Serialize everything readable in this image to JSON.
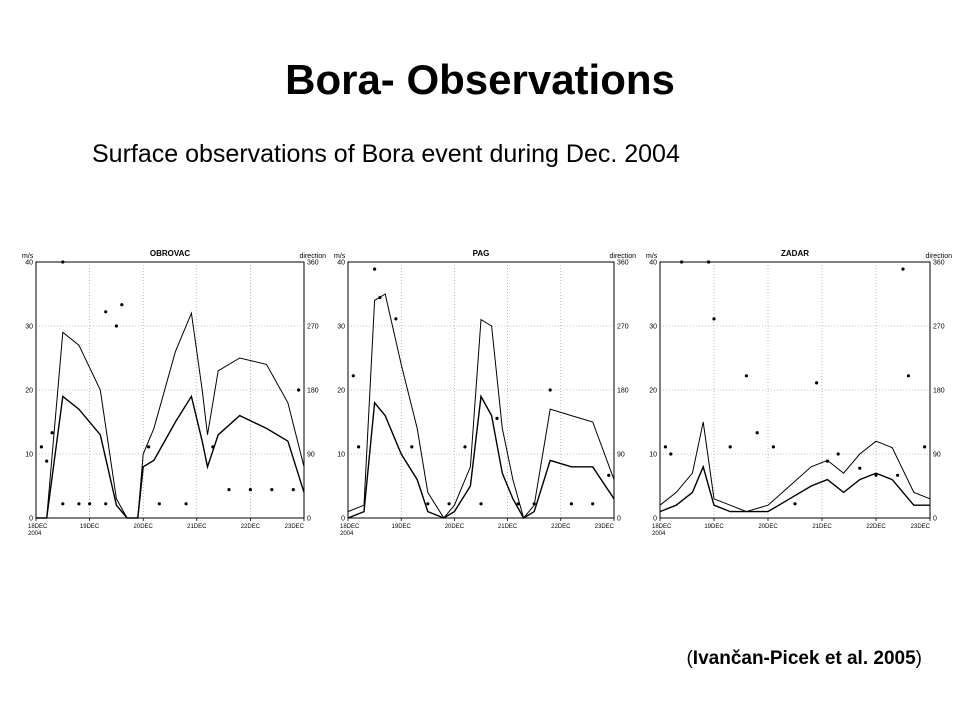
{
  "page": {
    "title": "Bora- Observations",
    "subtitle": "Surface observations of Bora event during Dec. 2004",
    "citation_open": "(",
    "citation_text": "Ivančan-Picek et al. 2005",
    "citation_close": ")"
  },
  "chart_data": [
    {
      "type": "line",
      "title": "OBROVAC",
      "ylabel_left": "m/s",
      "ylabel_right": "direction",
      "ylim": [
        0,
        40
      ],
      "ylim_right": [
        0,
        360
      ],
      "yticks_left": [
        "0",
        "10",
        "20",
        "30",
        "40"
      ],
      "yticks_right": [
        "0",
        "90",
        "180",
        "270",
        "360"
      ],
      "xlim": [
        0,
        5
      ],
      "xticks": [
        "18DEC 2004",
        "19DEC",
        "20DEC",
        "21DEC",
        "22DEC",
        "23DEC"
      ],
      "grid": true,
      "series": [
        {
          "x": [
            0,
            0.2,
            0.5,
            0.8,
            1.2,
            1.5,
            1.7,
            1.9,
            2.0,
            2.2,
            2.6,
            2.9,
            3.1,
            3.2,
            3.4,
            3.8,
            4.3,
            4.7,
            5.0
          ],
          "y": [
            0,
            0,
            29,
            27,
            20,
            3,
            0,
            0,
            10,
            14,
            26,
            32,
            20,
            13,
            23,
            25,
            24,
            18,
            8
          ]
        },
        {
          "x": [
            0,
            0.2,
            0.5,
            0.8,
            1.2,
            1.5,
            1.7,
            1.9,
            2.0,
            2.2,
            2.6,
            2.9,
            3.1,
            3.2,
            3.4,
            3.8,
            4.3,
            4.7,
            5.0
          ],
          "y": [
            0,
            0,
            19,
            17,
            13,
            2,
            0,
            0,
            8,
            9,
            15,
            19,
            12,
            8,
            13,
            16,
            14,
            12,
            4
          ]
        }
      ],
      "direction_points": [
        [
          0.1,
          100
        ],
        [
          0.2,
          80
        ],
        [
          0.3,
          120
        ],
        [
          0.5,
          20
        ],
        [
          0.8,
          20
        ],
        [
          1.0,
          20
        ],
        [
          1.3,
          20
        ],
        [
          0.5,
          360
        ],
        [
          1.3,
          290
        ],
        [
          1.5,
          270
        ],
        [
          1.6,
          300
        ],
        [
          2.1,
          100
        ],
        [
          2.3,
          20
        ],
        [
          2.8,
          20
        ],
        [
          3.3,
          100
        ],
        [
          3.6,
          40
        ],
        [
          4.0,
          40
        ],
        [
          4.4,
          40
        ],
        [
          4.8,
          40
        ],
        [
          4.9,
          180
        ]
      ]
    },
    {
      "type": "line",
      "title": "PAG",
      "ylabel_left": "m/s",
      "ylabel_right": "direction",
      "ylim": [
        0,
        40
      ],
      "ylim_right": [
        0,
        360
      ],
      "yticks_left": [
        "0",
        "10",
        "20",
        "30",
        "40"
      ],
      "yticks_right": [
        "0",
        "90",
        "180",
        "270",
        "360"
      ],
      "xlim": [
        0,
        5
      ],
      "xticks": [
        "18DEC 2004",
        "19DEC",
        "20DEC",
        "21DEC",
        "22DEC",
        "23DEC"
      ],
      "grid": true,
      "series": [
        {
          "x": [
            0,
            0.3,
            0.5,
            0.7,
            1.0,
            1.3,
            1.5,
            1.8,
            2.0,
            2.3,
            2.5,
            2.7,
            2.9,
            3.1,
            3.3,
            3.5,
            3.8,
            4.2,
            4.6,
            5.0
          ],
          "y": [
            1,
            2,
            34,
            35,
            24,
            14,
            4,
            0,
            2,
            8,
            31,
            30,
            14,
            6,
            0,
            2,
            17,
            16,
            15,
            6
          ]
        },
        {
          "x": [
            0,
            0.3,
            0.5,
            0.7,
            1.0,
            1.3,
            1.5,
            1.8,
            2.0,
            2.3,
            2.5,
            2.7,
            2.9,
            3.1,
            3.3,
            3.5,
            3.8,
            4.2,
            4.6,
            5.0
          ],
          "y": [
            0,
            1,
            18,
            16,
            10,
            6,
            1,
            0,
            1,
            5,
            19,
            16,
            7,
            3,
            0,
            1,
            9,
            8,
            8,
            3
          ]
        }
      ],
      "direction_points": [
        [
          0.1,
          200
        ],
        [
          0.2,
          100
        ],
        [
          0.5,
          350
        ],
        [
          0.6,
          310
        ],
        [
          0.9,
          280
        ],
        [
          1.2,
          100
        ],
        [
          1.5,
          20
        ],
        [
          1.9,
          20
        ],
        [
          2.2,
          100
        ],
        [
          2.5,
          20
        ],
        [
          2.8,
          140
        ],
        [
          3.2,
          20
        ],
        [
          3.5,
          20
        ],
        [
          3.8,
          180
        ],
        [
          4.2,
          20
        ],
        [
          4.6,
          20
        ],
        [
          4.9,
          60
        ]
      ]
    },
    {
      "type": "line",
      "title": "ZADAR",
      "ylabel_left": "m/s",
      "ylabel_right": "direction",
      "ylim": [
        0,
        40
      ],
      "ylim_right": [
        0,
        360
      ],
      "yticks_left": [
        "0",
        "10",
        "20",
        "30",
        "40"
      ],
      "yticks_right": [
        "0",
        "90",
        "180",
        "270",
        "360"
      ],
      "xlim": [
        0,
        5
      ],
      "xticks": [
        "18DEC 2004",
        "19DEC",
        "20DEC",
        "21DEC",
        "22DEC",
        "23DEC"
      ],
      "grid": true,
      "series": [
        {
          "x": [
            0,
            0.3,
            0.6,
            0.8,
            1.0,
            1.3,
            1.6,
            2.0,
            2.4,
            2.8,
            3.1,
            3.4,
            3.7,
            4.0,
            4.3,
            4.7,
            5.0
          ],
          "y": [
            2,
            4,
            7,
            15,
            3,
            2,
            1,
            2,
            5,
            8,
            9,
            7,
            10,
            12,
            11,
            4,
            3
          ]
        },
        {
          "x": [
            0,
            0.3,
            0.6,
            0.8,
            1.0,
            1.3,
            1.6,
            2.0,
            2.4,
            2.8,
            3.1,
            3.4,
            3.7,
            4.0,
            4.3,
            4.7,
            5.0
          ],
          "y": [
            1,
            2,
            4,
            8,
            2,
            1,
            1,
            1,
            3,
            5,
            6,
            4,
            6,
            7,
            6,
            2,
            2
          ]
        }
      ],
      "direction_points": [
        [
          0.1,
          100
        ],
        [
          0.2,
          90
        ],
        [
          0.4,
          360
        ],
        [
          0.9,
          360
        ],
        [
          1.0,
          280
        ],
        [
          1.3,
          100
        ],
        [
          1.6,
          200
        ],
        [
          1.8,
          120
        ],
        [
          2.1,
          100
        ],
        [
          2.5,
          20
        ],
        [
          2.9,
          190
        ],
        [
          3.1,
          80
        ],
        [
          3.3,
          90
        ],
        [
          3.7,
          70
        ],
        [
          4.0,
          60
        ],
        [
          4.4,
          60
        ],
        [
          4.5,
          350
        ],
        [
          4.6,
          200
        ],
        [
          4.9,
          100
        ]
      ]
    }
  ]
}
